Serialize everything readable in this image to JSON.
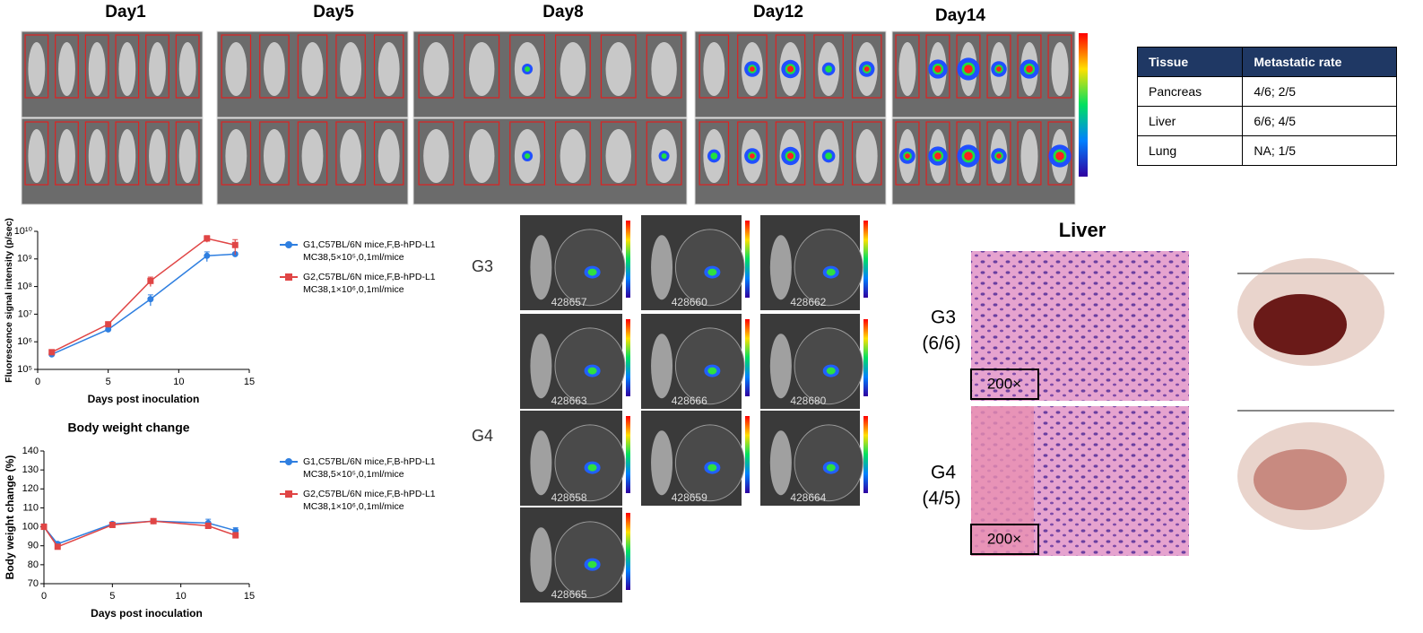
{
  "imaging": {
    "days": [
      "Day1",
      "Day5",
      "Day8",
      "Day12",
      "Day14"
    ]
  },
  "table": {
    "header": [
      "Tissue",
      "Metastatic rate"
    ],
    "rows": [
      [
        "Pancreas",
        "4/6;  2/5"
      ],
      [
        "Liver",
        "6/6;  4/5"
      ],
      [
        "Lung",
        "NA;  1/5"
      ]
    ]
  },
  "chart_data": [
    {
      "type": "line",
      "ylabel": "Fluorescence signal intensity (p/sec)",
      "xlabel": "Days post inoculation",
      "yscale": "log",
      "xlim": [
        0,
        15
      ],
      "xticks": [
        0,
        5,
        10,
        15
      ],
      "ylim": [
        100000,
        10000000000
      ],
      "yticks": [
        {
          "value": 100000,
          "label": "10⁵"
        },
        {
          "value": 1000000,
          "label": "10⁶"
        },
        {
          "value": 10000000,
          "label": "10⁷"
        },
        {
          "value": 100000000,
          "label": "10⁸"
        },
        {
          "value": 1000000000,
          "label": "10⁹"
        },
        {
          "value": 10000000000,
          "label": "10¹⁰"
        }
      ],
      "x": [
        1,
        5,
        8,
        12,
        14
      ],
      "series": [
        {
          "name": "G1,C57BL/6N mice,F,B-hPD-L1\nMC38,5×10⁵,0,1ml/mice",
          "color": "#2f7fe0",
          "marker": "circle",
          "values": [
            350000,
            2800000,
            35000000,
            1300000000,
            1500000000
          ],
          "errors": [
            50000,
            300000,
            15000000,
            500000000,
            200000000
          ]
        },
        {
          "name": "G2,C57BL/6N mice,F,B-hPD-L1\nMC38,1×10⁶,0,1ml/mice",
          "color": "#e04545",
          "marker": "square",
          "values": [
            420000,
            4300000,
            160000000,
            5500000000,
            3200000000
          ],
          "errors": [
            50000,
            800000,
            60000000,
            1500000000,
            1800000000
          ]
        }
      ]
    },
    {
      "type": "line",
      "title": "Body weight change",
      "ylabel": "Body weight change (%)",
      "xlabel": "Days post inoculation",
      "xlim": [
        0,
        15
      ],
      "xticks": [
        0,
        5,
        10,
        15
      ],
      "ylim": [
        70,
        140
      ],
      "yticks": [
        70,
        80,
        90,
        100,
        110,
        120,
        130,
        140
      ],
      "x": [
        0,
        1,
        5,
        8,
        12,
        14
      ],
      "series": [
        {
          "name": "G1,C57BL/6N mice,F,B-hPD-L1\nMC38,5×10⁵,0,1ml/mice",
          "color": "#2f7fe0",
          "marker": "circle",
          "values": [
            100,
            91,
            101.5,
            103,
            102,
            98
          ],
          "errors": [
            1.5,
            1,
            1,
            1,
            2,
            1.5
          ]
        },
        {
          "name": "G2,C57BL/6N mice,F,B-hPD-L1\nMC38,1×10⁶,0,1ml/mice",
          "color": "#e04545",
          "marker": "square",
          "values": [
            100,
            89.5,
            101,
            103,
            100.5,
            95.5
          ],
          "errors": [
            1.5,
            1,
            1,
            1,
            1.5,
            1.5
          ]
        }
      ]
    }
  ],
  "organs": {
    "groups": [
      "G3",
      "G4"
    ],
    "ids": [
      "428657",
      "428660",
      "428662",
      "428663",
      "428666",
      "428680",
      "428658",
      "428659",
      "428664",
      "428665"
    ]
  },
  "histology": {
    "title": "Liver",
    "groups": [
      {
        "group": "G3",
        "rate": "(6/6)"
      },
      {
        "group": "G4",
        "rate": "(4/5)"
      }
    ],
    "magnification": "200×"
  }
}
